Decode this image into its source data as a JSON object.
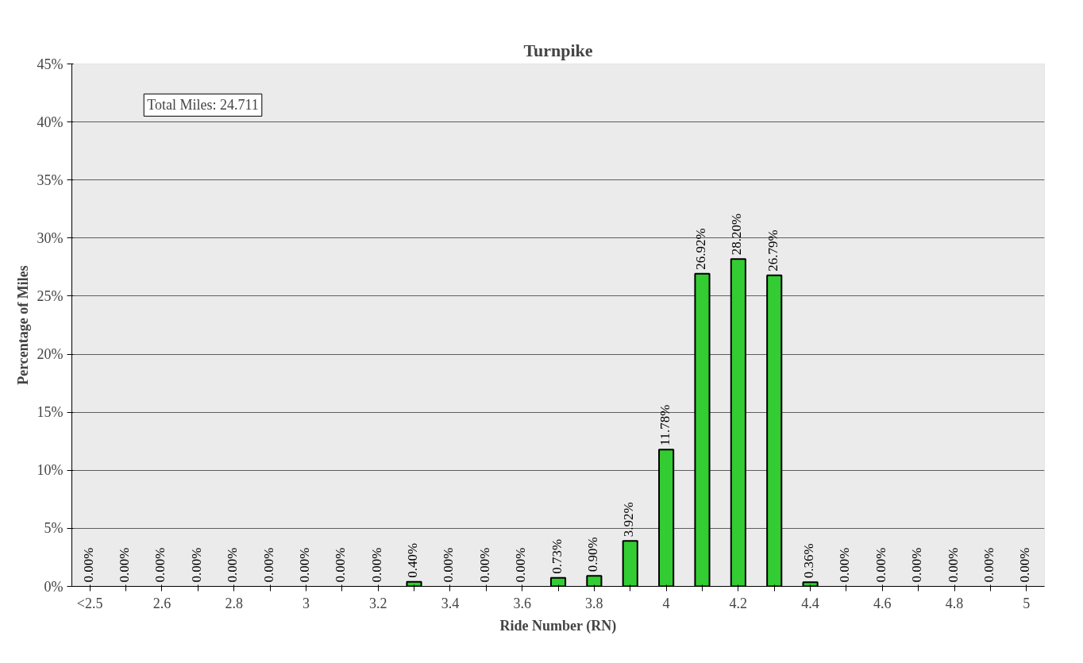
{
  "chart_data": {
    "type": "bar",
    "title": "Turnpike",
    "xlabel": "Ride Number (RN)",
    "ylabel": "Percentage of Miles",
    "categories": [
      "<2.5",
      null,
      "2.6",
      null,
      "2.8",
      null,
      "3",
      null,
      "3.2",
      null,
      "3.4",
      null,
      "3.6",
      null,
      "3.8",
      null,
      "4",
      null,
      "4.2",
      null,
      "4.4",
      null,
      "4.6",
      null,
      "4.8",
      null,
      "5"
    ],
    "values": [
      0,
      0,
      0,
      0,
      0,
      0,
      0,
      0,
      0,
      0.4,
      0,
      0,
      0,
      0.73,
      0.9,
      3.92,
      11.78,
      26.92,
      28.2,
      26.79,
      0.36,
      0,
      0,
      0,
      0,
      0,
      0
    ],
    "value_labels": [
      "0.00%",
      "0.00%",
      "0.00%",
      "0.00%",
      "0.00%",
      "0.00%",
      "0.00%",
      "0.00%",
      "0.00%",
      "0.40%",
      "0.00%",
      "0.00%",
      "0.00%",
      "0.73%",
      "0.90%",
      "3.92%",
      "11.78%",
      "26.92%",
      "28.20%",
      "26.79%",
      "0.36%",
      "0.00%",
      "0.00%",
      "0.00%",
      "0.00%",
      "0.00%",
      "0.00%"
    ],
    "color": "#33cc33",
    "ylim": [
      0,
      45
    ],
    "yticks": [
      {
        "value": 0,
        "label": "0%"
      },
      {
        "value": 5,
        "label": "5%"
      },
      {
        "value": 10,
        "label": "10%"
      },
      {
        "value": 15,
        "label": "15%"
      },
      {
        "value": 20,
        "label": "20%"
      },
      {
        "value": 25,
        "label": "25%"
      },
      {
        "value": 30,
        "label": "30%"
      },
      {
        "value": 35,
        "label": "35%"
      },
      {
        "value": 40,
        "label": "40%"
      },
      {
        "value": 45,
        "label": "45%"
      }
    ],
    "grid": "y",
    "annotations": [
      "Total Miles: 24.711"
    ]
  }
}
